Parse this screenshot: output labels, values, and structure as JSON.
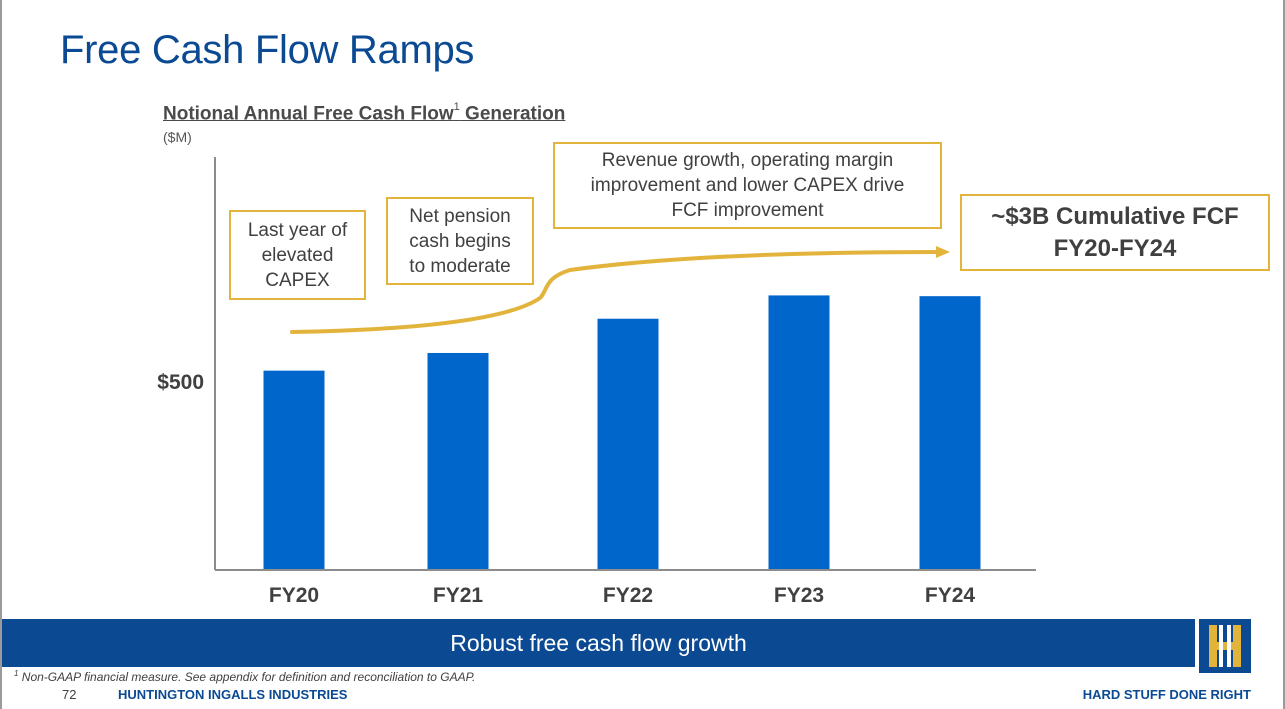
{
  "title": "Free Cash Flow Ramps",
  "subtitle_main": "Notional Annual Free Cash Flow",
  "subtitle_sup": "1",
  "subtitle_tail": " Generation",
  "unit": "($M)",
  "chart_data": {
    "type": "bar",
    "categories": [
      "FY20",
      "FY21",
      "FY22",
      "FY23",
      "FY24"
    ],
    "values": [
      530,
      577,
      668,
      730,
      728
    ],
    "ylim": [
      0,
      1098
    ],
    "yticks": [
      {
        "value": 500,
        "label": "$500"
      }
    ],
    "bar_color": "#0066cc",
    "arrow_color": "#e3b43c",
    "grid": false
  },
  "callouts": [
    "Last year of\nelevated\nCAPEX",
    "Net pension\ncash begins\nto moderate",
    "Revenue growth, operating margin\nimprovement and lower CAPEX drive\nFCF improvement",
    "~$3B Cumulative FCF\nFY20-FY24"
  ],
  "banner": "Robust free cash flow growth",
  "footnote_sup": "1",
  "footnote": " Non-GAAP financial measure. See appendix for definition and reconciliation to GAAP.",
  "page_number": "72",
  "company": "HUNTINGTON INGALLS INDUSTRIES",
  "tagline": "HARD STUFF DONE RIGHT",
  "colors": {
    "brand_blue": "#0b4a93",
    "gold": "#e3b43c"
  }
}
